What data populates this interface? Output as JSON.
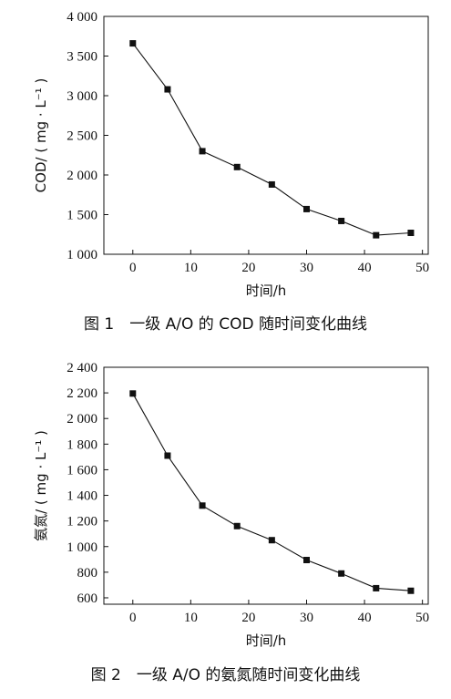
{
  "chart_data": [
    {
      "type": "line",
      "title": "图 1　一级 A/O 的 COD 随时间变化曲线",
      "xlabel": "时间/h",
      "ylabel": "COD/ ( mg · L⁻¹ )",
      "xlim": [
        -5,
        51
      ],
      "ylim": [
        1000,
        4000
      ],
      "xticks": [
        0,
        10,
        20,
        30,
        40,
        50
      ],
      "xtick_labels": [
        "0",
        "10",
        "20",
        "30",
        "40",
        "50"
      ],
      "yticks": [
        1000,
        1500,
        2000,
        2500,
        3000,
        3500,
        4000
      ],
      "ytick_labels": [
        "1 000",
        "1 500",
        "2 000",
        "2 500",
        "3 000",
        "3 500",
        "4 000"
      ],
      "grid": false,
      "marker": "square",
      "series": [
        {
          "x": [
            0,
            6,
            12,
            18,
            24,
            30,
            36,
            42,
            48
          ],
          "y": [
            3660,
            3080,
            2300,
            2100,
            1880,
            1570,
            1420,
            1240,
            1270
          ]
        }
      ]
    },
    {
      "type": "line",
      "title": "图 2　一级 A/O 的氨氮随时间变化曲线",
      "xlabel": "时间/h",
      "ylabel": "氨氮/ ( mg · L⁻¹ )",
      "xlim": [
        -5,
        51
      ],
      "ylim": [
        550,
        2400
      ],
      "xticks": [
        0,
        10,
        20,
        30,
        40,
        50
      ],
      "xtick_labels": [
        "0",
        "10",
        "20",
        "30",
        "40",
        "50"
      ],
      "yticks": [
        600,
        800,
        1000,
        1200,
        1400,
        1600,
        1800,
        2000,
        2200,
        2400
      ],
      "ytick_labels": [
        "600",
        "800",
        "1 000",
        "1 200",
        "1 400",
        "1 600",
        "1 800",
        "2 000",
        "2 200",
        "2 400"
      ],
      "grid": false,
      "marker": "square",
      "series": [
        {
          "x": [
            0,
            6,
            12,
            18,
            24,
            30,
            36,
            42,
            48
          ],
          "y": [
            2195,
            1710,
            1320,
            1160,
            1050,
            895,
            790,
            675,
            655
          ]
        }
      ]
    }
  ]
}
